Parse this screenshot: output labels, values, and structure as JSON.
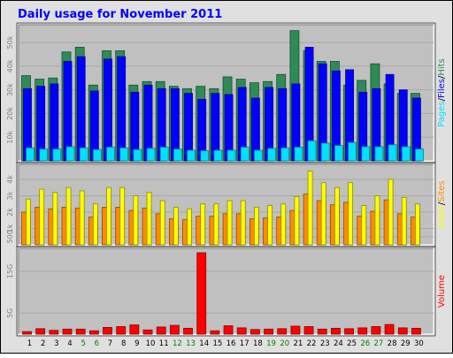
{
  "title": "Daily usage for November 2011",
  "colors": {
    "background": "#e0e0e0",
    "plot_background": "#c0c0c0",
    "title": "#0000ff",
    "hits": "#2e8b57",
    "files": "#0000ff",
    "pages": "#00e0ff",
    "visits": "#ffff00",
    "sites": "#ff8c00",
    "volume": "#ff0000",
    "weekend_day": "#008000",
    "weekday": "#000000"
  },
  "chart_data": [
    {
      "type": "bar",
      "name": "hits-files-pages",
      "categories": [
        "1",
        "2",
        "3",
        "4",
        "5",
        "6",
        "7",
        "8",
        "9",
        "10",
        "11",
        "12",
        "13",
        "14",
        "15",
        "16",
        "17",
        "18",
        "19",
        "20",
        "21",
        "22",
        "23",
        "24",
        "25",
        "26",
        "27",
        "28",
        "29",
        "30"
      ],
      "weekend_days": [
        "5",
        "6",
        "12",
        "13",
        "19",
        "20",
        "26",
        "27"
      ],
      "y_ticks": [
        "50k",
        "40k",
        "30k",
        "20k",
        "10k"
      ],
      "ylim": [
        0,
        56000
      ],
      "ylabel_parts": [
        "Pages",
        "Files",
        "Hits"
      ],
      "ylabel_separator": "/",
      "series": [
        {
          "name": "Hits",
          "values": [
            36000,
            34500,
            35000,
            46000,
            48000,
            32000,
            46500,
            46500,
            32000,
            33500,
            33500,
            31500,
            30500,
            31500,
            30500,
            35500,
            34500,
            33000,
            33500,
            36500,
            55000,
            46500,
            42000,
            42000,
            32000,
            34000,
            41000,
            32500,
            28500,
            28500
          ]
        },
        {
          "name": "Files",
          "values": [
            30500,
            31500,
            32500,
            42000,
            44000,
            29500,
            43000,
            44000,
            29000,
            32000,
            30500,
            30500,
            28500,
            26000,
            28500,
            28000,
            31000,
            26500,
            31000,
            30500,
            32500,
            48000,
            41000,
            38000,
            38500,
            29000,
            30500,
            36500,
            30000,
            26500
          ]
        },
        {
          "name": "Pages",
          "values": [
            5500,
            5000,
            5000,
            6000,
            5500,
            4800,
            5800,
            5500,
            4800,
            5300,
            5800,
            5000,
            4500,
            4300,
            4500,
            4500,
            5800,
            4500,
            5300,
            5500,
            5800,
            8500,
            7500,
            6500,
            7800,
            6000,
            6000,
            6800,
            6000,
            5000
          ]
        }
      ]
    },
    {
      "type": "bar",
      "name": "visits-sites",
      "categories": [
        "1",
        "2",
        "3",
        "4",
        "5",
        "6",
        "7",
        "8",
        "9",
        "10",
        "11",
        "12",
        "13",
        "14",
        "15",
        "16",
        "17",
        "18",
        "19",
        "20",
        "21",
        "22",
        "23",
        "24",
        "25",
        "26",
        "27",
        "28",
        "29",
        "30"
      ],
      "y_ticks": [
        "4k",
        "3k",
        "2k",
        "1k",
        "500"
      ],
      "ylim": [
        0,
        4700
      ],
      "ylabel_parts": [
        "Visits",
        "Sites"
      ],
      "ylabel_separator": "/",
      "series": [
        {
          "name": "Visits",
          "values": [
            2000,
            2300,
            2200,
            2300,
            2250,
            1700,
            2300,
            2300,
            2100,
            2250,
            1900,
            1600,
            1550,
            1750,
            1750,
            1900,
            1900,
            1600,
            1650,
            1700,
            2100,
            3100,
            2700,
            2450,
            2600,
            1750,
            2050,
            2750,
            1900,
            1700
          ]
        },
        {
          "name": "Sites",
          "values": [
            2800,
            3400,
            3200,
            3500,
            3300,
            2500,
            3500,
            3500,
            3000,
            3200,
            2700,
            2300,
            2200,
            2500,
            2500,
            2700,
            2700,
            2300,
            2400,
            2500,
            2950,
            4500,
            3800,
            3500,
            3800,
            2400,
            3000,
            4000,
            2900,
            2500
          ]
        }
      ]
    },
    {
      "type": "bar",
      "name": "volume",
      "categories": [
        "1",
        "2",
        "3",
        "4",
        "5",
        "6",
        "7",
        "8",
        "9",
        "10",
        "11",
        "12",
        "13",
        "14",
        "15",
        "16",
        "17",
        "18",
        "19",
        "20",
        "21",
        "22",
        "23",
        "24",
        "25",
        "26",
        "27",
        "28",
        "29",
        "30"
      ],
      "y_ticks": [
        "15G",
        "5G"
      ],
      "ylim": [
        0,
        19600
      ],
      "ylabel_parts": [
        "Volume"
      ],
      "series": [
        {
          "name": "Volume",
          "values": [
            600,
            1300,
            900,
            1200,
            1200,
            800,
            1600,
            1800,
            2200,
            1000,
            1700,
            2100,
            1400,
            19400,
            800,
            2000,
            1500,
            1100,
            1200,
            1300,
            1900,
            1800,
            1200,
            1400,
            1300,
            1500,
            1800,
            2300,
            1500,
            1400
          ]
        }
      ]
    }
  ]
}
